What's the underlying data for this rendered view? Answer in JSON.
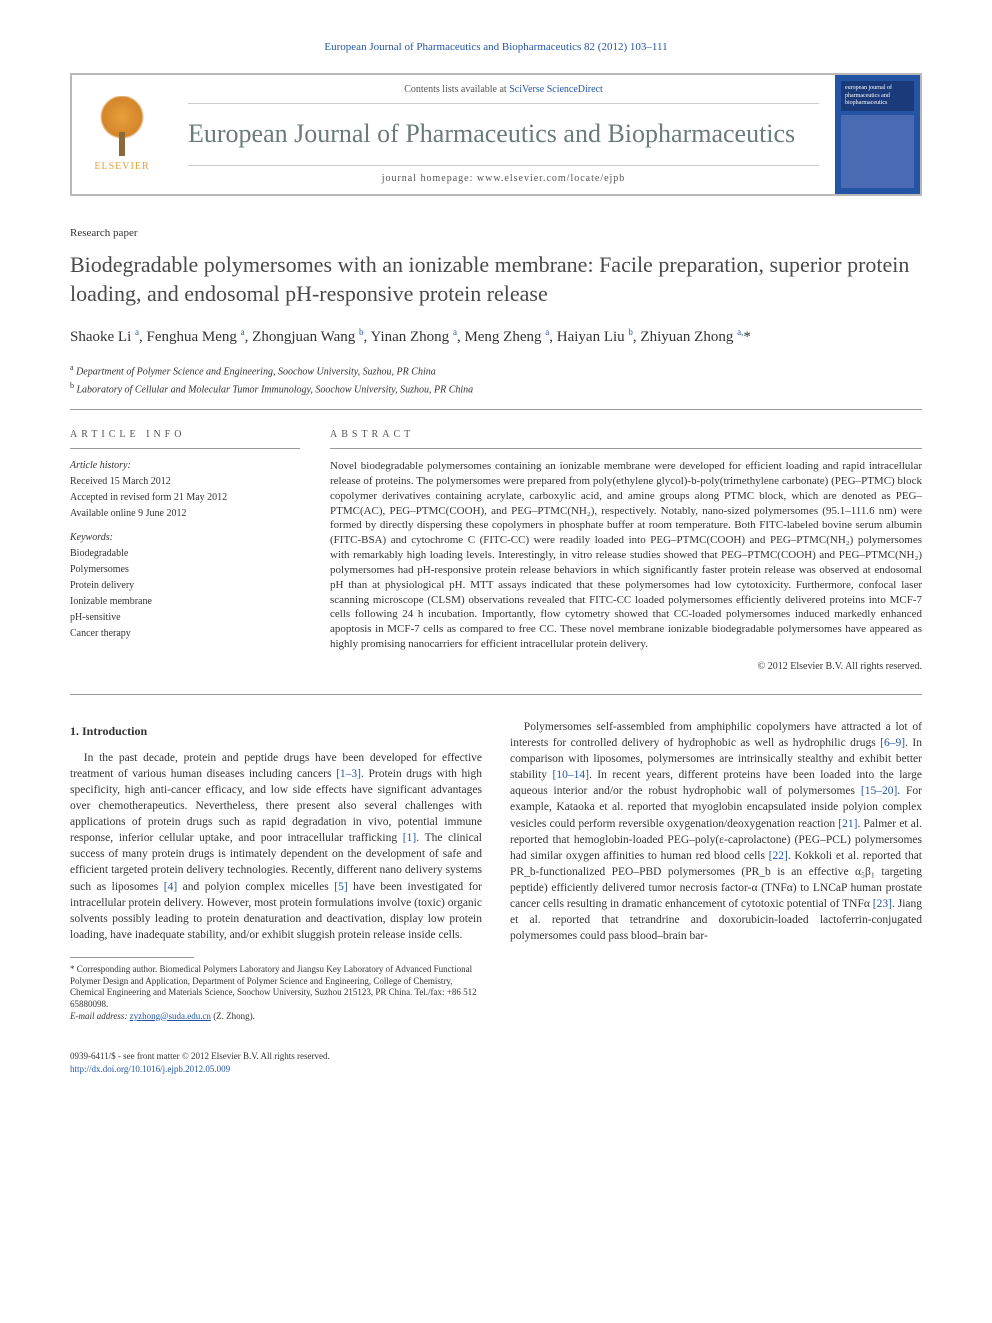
{
  "journal_citation": "European Journal of Pharmaceutics and Biopharmaceutics 82 (2012) 103–111",
  "header": {
    "contents_line_pre": "Contents lists available at ",
    "contents_link": "SciVerse ScienceDirect",
    "journal_name": "European Journal of Pharmaceutics and Biopharmaceutics",
    "homepage_pre": "journal homepage: ",
    "homepage": "www.elsevier.com/locate/ejpb",
    "elsevier_label": "ELSEVIER"
  },
  "cover": {
    "line1": "european journal of",
    "line2": "pharmaceutics and biopharmaceutics"
  },
  "paper_type": "Research paper",
  "title": "Biodegradable polymersomes with an ionizable membrane: Facile preparation, superior protein loading, and endosomal pH-responsive protein release",
  "authors_html": "Shaoke Li <sup>a</sup>, Fenghua Meng <sup>a</sup>, Zhongjuan Wang <sup>b</sup>, Yinan Zhong <sup>a</sup>, Meng Zheng <sup>a</sup>, Haiyan Liu <sup>b</sup>, Zhiyuan Zhong <sup>a,</sup><span class='star'>*</span>",
  "affiliations": [
    {
      "sup": "a",
      "text": "Department of Polymer Science and Engineering, Soochow University, Suzhou, PR China"
    },
    {
      "sup": "b",
      "text": "Laboratory of Cellular and Molecular Tumor Immunology, Soochow University, Suzhou, PR China"
    }
  ],
  "article_info": {
    "header": "ARTICLE INFO",
    "history_label": "Article history:",
    "history": [
      "Received 15 March 2012",
      "Accepted in revised form 21 May 2012",
      "Available online 9 June 2012"
    ],
    "keywords_label": "Keywords:",
    "keywords": [
      "Biodegradable",
      "Polymersomes",
      "Protein delivery",
      "Ionizable membrane",
      "pH-sensitive",
      "Cancer therapy"
    ]
  },
  "abstract": {
    "header": "ABSTRACT",
    "text": "Novel biodegradable polymersomes containing an ionizable membrane were developed for efficient loading and rapid intracellular release of proteins. The polymersomes were prepared from poly(ethylene glycol)-b-poly(trimethylene carbonate) (PEG–PTMC) block copolymer derivatives containing acrylate, carboxylic acid, and amine groups along PTMC block, which are denoted as PEG–PTMC(AC), PEG–PTMC(COOH), and PEG–PTMC(NH₂), respectively. Notably, nano-sized polymersomes (95.1–111.6 nm) were formed by directly dispersing these copolymers in phosphate buffer at room temperature. Both FITC-labeled bovine serum albumin (FITC-BSA) and cytochrome C (FITC-CC) were readily loaded into PEG–PTMC(COOH) and PEG–PTMC(NH₂) polymersomes with remarkably high loading levels. Interestingly, in vitro release studies showed that PEG–PTMC(COOH) and PEG–PTMC(NH₂) polymersomes had pH-responsive protein release behaviors in which significantly faster protein release was observed at endosomal pH than at physiological pH. MTT assays indicated that these polymersomes had low cytotoxicity. Furthermore, confocal laser scanning microscope (CLSM) observations revealed that FITC-CC loaded polymersomes efficiently delivered proteins into MCF-7 cells following 24 h incubation. Importantly, flow cytometry showed that CC-loaded polymersomes induced markedly enhanced apoptosis in MCF-7 cells as compared to free CC. These novel membrane ionizable biodegradable polymersomes have appeared as highly promising nanocarriers for efficient intracellular protein delivery.",
    "copyright": "© 2012 Elsevier B.V. All rights reserved."
  },
  "intro": {
    "heading": "1. Introduction",
    "p1": "In the past decade, protein and peptide drugs have been developed for effective treatment of various human diseases including cancers [1–3]. Protein drugs with high specificity, high anti-cancer efficacy, and low side effects have significant advantages over chemotherapeutics. Nevertheless, there present also several challenges with applications of protein drugs such as rapid degradation in vivo, potential immune response, inferior cellular uptake, and poor intracellular trafficking [1]. The clinical success of many protein drugs is intimately dependent on the development of safe and efficient targeted protein delivery technologies. Recently, different nano delivery systems such as liposomes [4] and polyion complex micelles [5] have been investigated for intracellular protein delivery. However, most protein formulations involve (toxic) organic solvents possibly leading to protein denaturation and deactivation, display low protein loading, have inadequate stability, and/or exhibit sluggish protein release inside cells.",
    "p2": "Polymersomes self-assembled from amphiphilic copolymers have attracted a lot of interests for controlled delivery of hydrophobic as well as hydrophilic drugs [6–9]. In comparison with liposomes, polymersomes are intrinsically stealthy and exhibit better stability [10–14]. In recent years, different proteins have been loaded into the large aqueous interior and/or the robust hydrophobic wall of polymersomes [15–20]. For example, Kataoka et al. reported that myoglobin encapsulated inside polyion complex vesicles could perform reversible oxygenation/deoxygenation reaction [21]. Palmer et al. reported that hemoglobin-loaded PEG–poly(ε-caprolactone) (PEG–PCL) polymersomes had similar oxygen affinities to human red blood cells [22]. Kokkoli et al. reported that PR_b-functionalized PEO–PBD polymersomes (PR_b is an effective α₅β₁ targeting peptide) efficiently delivered tumor necrosis factor-α (TNFα) to LNCaP human prostate cancer cells resulting in dramatic enhancement of cytotoxic potential of TNFα [23]. Jiang et al. reported that tetrandrine and doxorubicin-loaded lactoferrin-conjugated polymersomes could pass blood–brain bar-"
  },
  "footnote": {
    "corr": "* Corresponding author. Biomedical Polymers Laboratory and Jiangsu Key Laboratory of Advanced Functional Polymer Design and Application, Department of Polymer Science and Engineering, College of Chemistry, Chemical Engineering and Materials Science, Soochow University, Suzhou 215123, PR China. Tel./fax: +86 512 65880098.",
    "email_label": "E-mail address: ",
    "email": "zyzhong@suda.edu.cn",
    "email_suffix": " (Z. Zhong)."
  },
  "footer": {
    "line1": "0939-6411/$ - see front matter © 2012 Elsevier B.V. All rights reserved.",
    "doi_label": "http://dx.doi.org/",
    "doi": "10.1016/j.ejpb.2012.05.009"
  },
  "colors": {
    "link": "#2455a4",
    "header_text": "#6b7a7a",
    "border": "#b8b8b8",
    "elsevier_orange": "#e8a03a"
  }
}
